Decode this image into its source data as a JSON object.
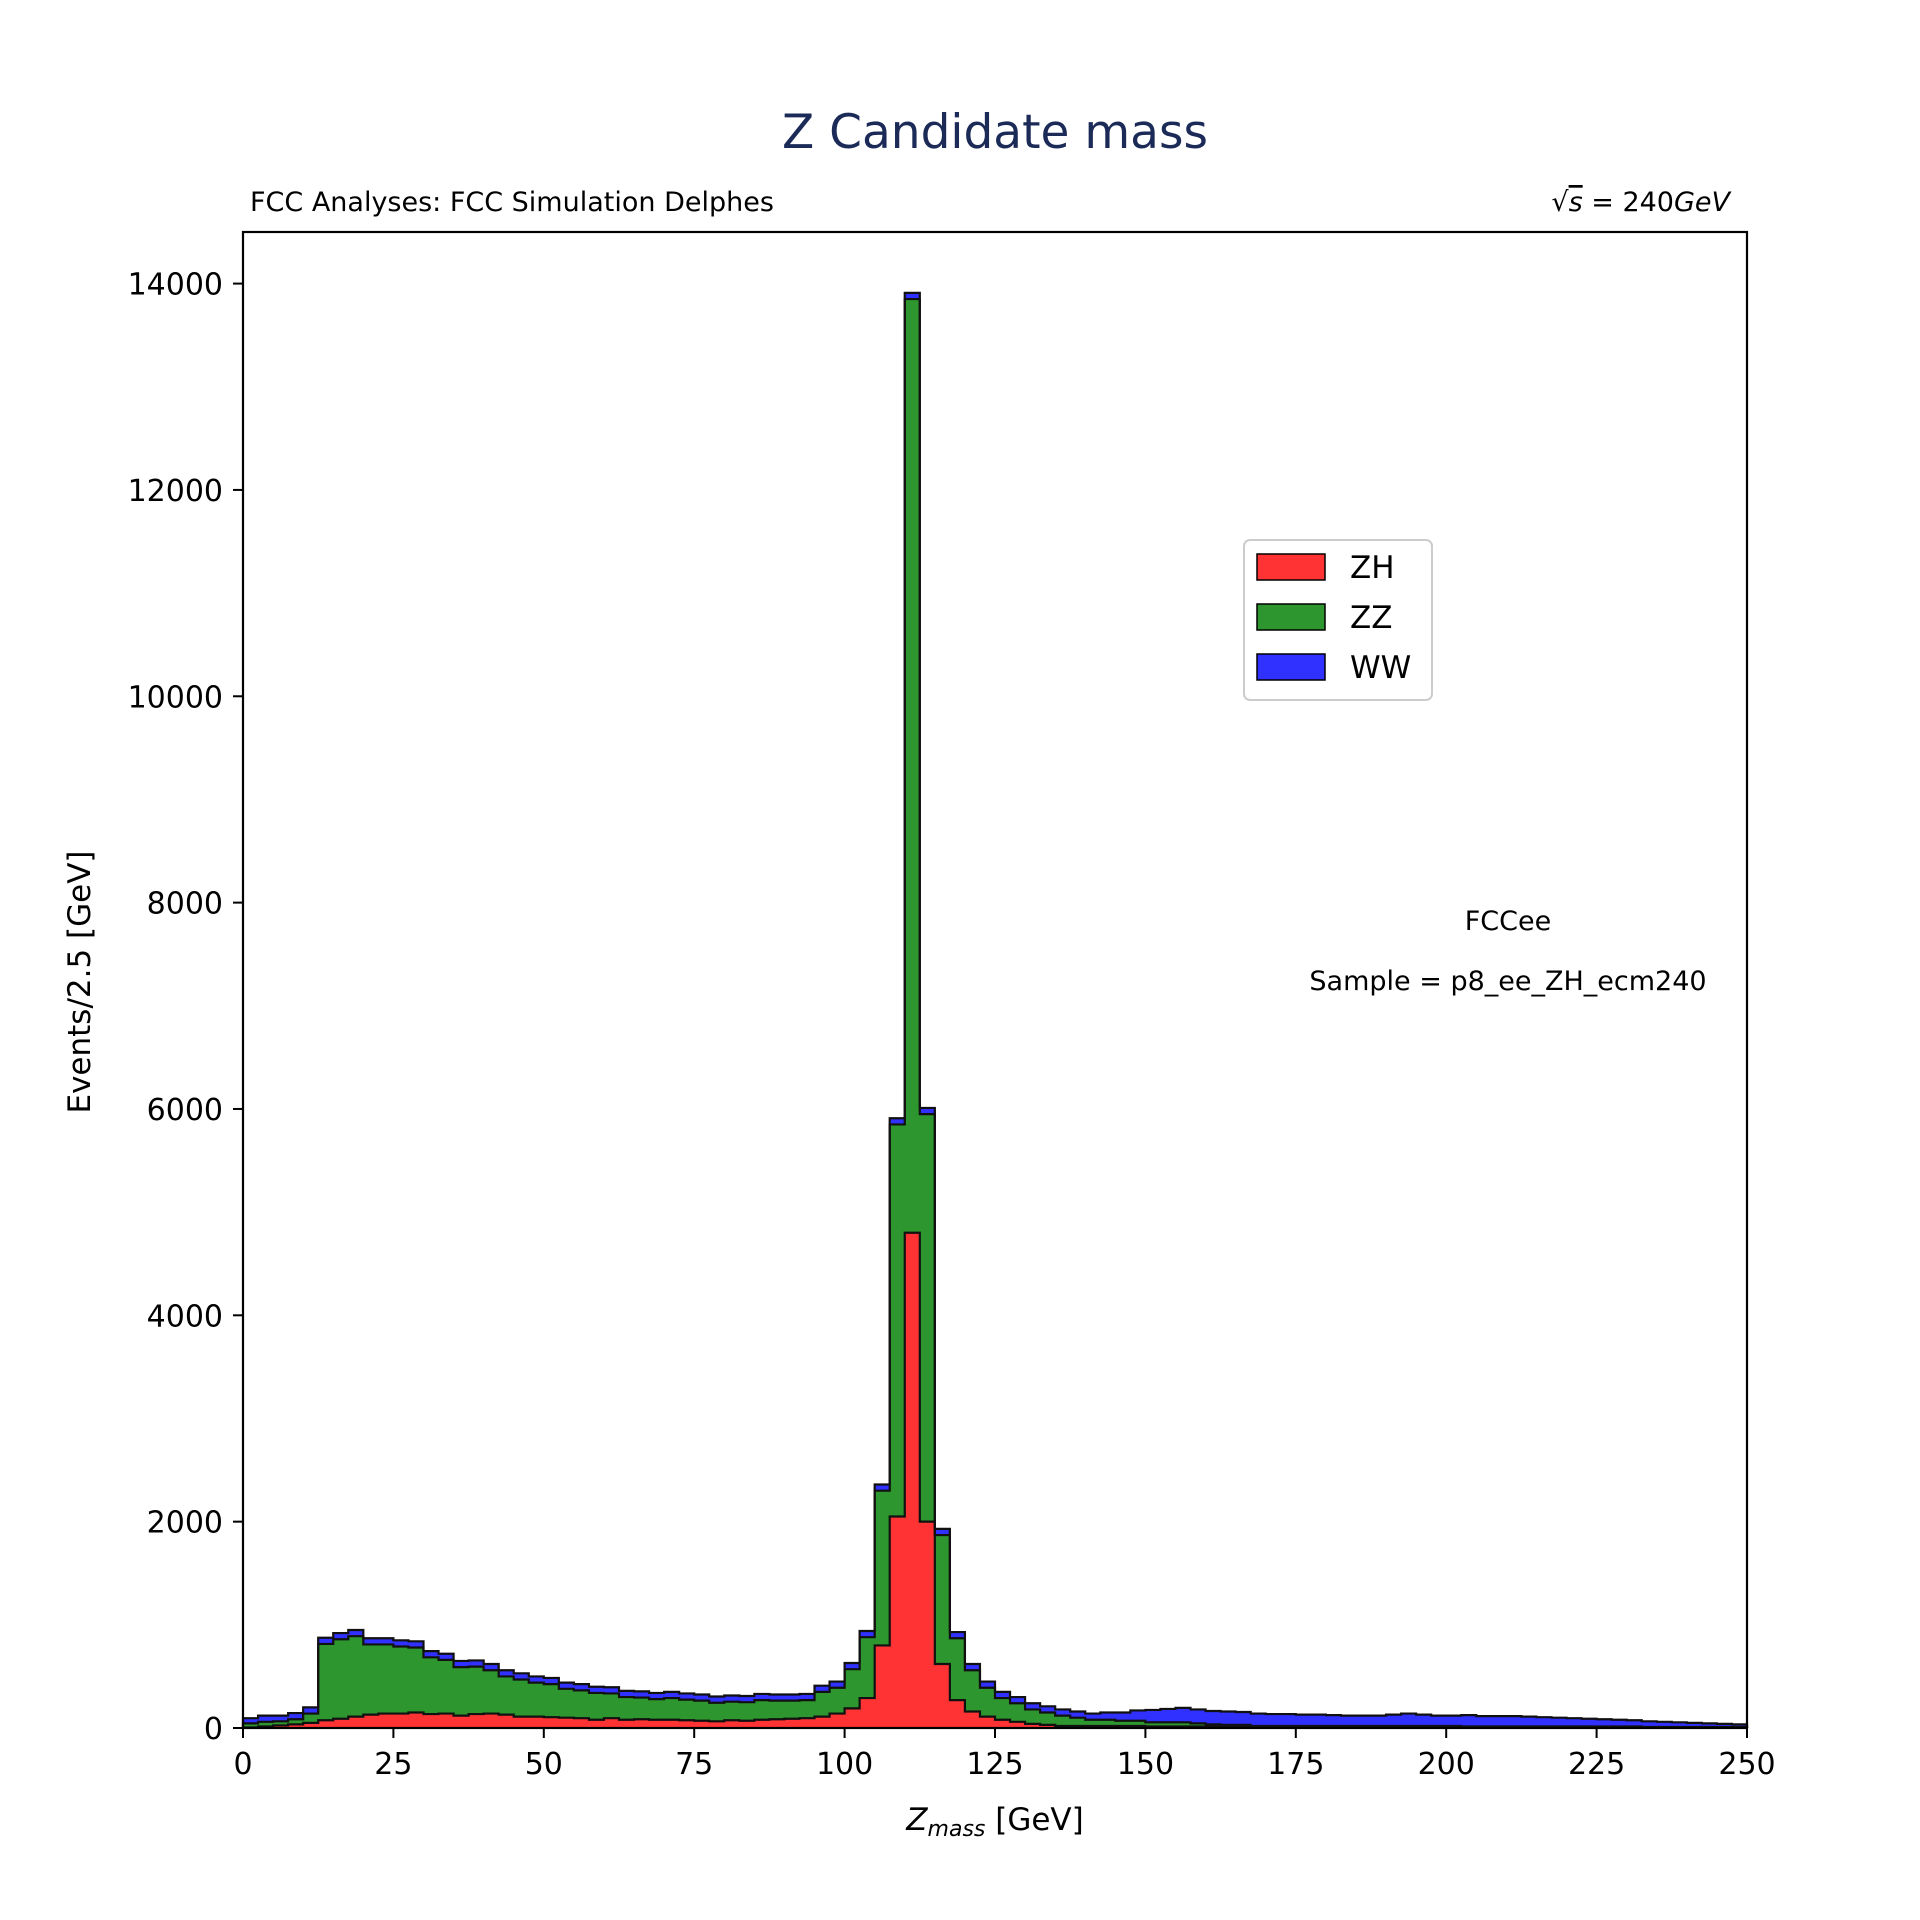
{
  "chart_data": {
    "type": "stacked-step-histogram",
    "title": "Z Candidate mass",
    "subtitle_left": "FCC Analyses: FCC Simulation Delphes",
    "subtitle_right_prefix": "√",
    "subtitle_right_sym": "s",
    "subtitle_right_eq": " = 240",
    "subtitle_right_unit": "GeV",
    "xlabel_sym": "Z",
    "xlabel_sub": "mass",
    "xlabel_unit": " [GeV]",
    "ylabel": "Events/2.5 [GeV]",
    "xlim": [
      0,
      250
    ],
    "ylim": [
      0,
      14500
    ],
    "xticks": [
      0,
      25,
      50,
      75,
      100,
      125,
      150,
      175,
      200,
      225,
      250
    ],
    "yticks": [
      0,
      2000,
      4000,
      6000,
      8000,
      10000,
      12000,
      14000
    ],
    "bin_width": 2.5,
    "bin_start": 0,
    "annotations": [
      "FCCee",
      "Sample = p8_ee_ZH_ecm240"
    ],
    "legend_position": "upper-right-center",
    "series": [
      {
        "name": "ZH",
        "color": "#ff3333",
        "values": [
          5,
          15,
          25,
          35,
          50,
          75,
          90,
          110,
          130,
          140,
          140,
          150,
          135,
          140,
          120,
          135,
          140,
          130,
          110,
          110,
          105,
          100,
          95,
          80,
          95,
          80,
          85,
          80,
          80,
          75,
          70,
          65,
          75,
          70,
          80,
          85,
          90,
          95,
          110,
          140,
          190,
          290,
          800,
          2050,
          4800,
          2000,
          620,
          270,
          160,
          110,
          80,
          60,
          40,
          30,
          20,
          20,
          20,
          20,
          20,
          20,
          15,
          15,
          15,
          15,
          15,
          15,
          15,
          10,
          10,
          10,
          10,
          10,
          10,
          10,
          10,
          10,
          10,
          10,
          10,
          10,
          10,
          5,
          5,
          5,
          5,
          5,
          5,
          5,
          5,
          5,
          5,
          5,
          5,
          5,
          5,
          5,
          5,
          5,
          5,
          5
        ]
      },
      {
        "name": "ZZ",
        "color": "#2e962e",
        "values": [
          40,
          45,
          40,
          50,
          90,
          740,
          770,
          780,
          680,
          670,
          650,
          630,
          550,
          520,
          470,
          460,
          420,
          370,
          360,
          330,
          320,
          280,
          270,
          260,
          240,
          220,
          210,
          200,
          210,
          200,
          195,
          180,
          180,
          180,
          190,
          180,
          175,
          175,
          240,
          250,
          380,
          590,
          1500,
          3800,
          9050,
          3950,
          1250,
          600,
          400,
          280,
          210,
          180,
          140,
          120,
          100,
          80,
          60,
          60,
          50,
          50,
          40,
          40,
          40,
          30,
          20,
          15,
          15,
          10,
          10,
          10,
          10,
          10,
          10,
          10,
          10,
          10,
          10,
          10,
          10,
          10,
          10,
          10,
          10,
          10,
          10,
          10,
          10,
          10,
          10,
          10,
          10,
          10,
          10,
          5,
          5,
          5,
          5,
          5,
          5,
          5
        ]
      },
      {
        "name": "WW",
        "color": "#3030ff",
        "values": [
          50,
          60,
          55,
          60,
          60,
          60,
          60,
          60,
          60,
          60,
          60,
          60,
          60,
          60,
          60,
          60,
          60,
          60,
          60,
          60,
          60,
          60,
          60,
          60,
          60,
          60,
          60,
          60,
          60,
          60,
          60,
          60,
          60,
          60,
          60,
          60,
          60,
          60,
          60,
          60,
          60,
          60,
          60,
          60,
          60,
          60,
          60,
          60,
          60,
          60,
          60,
          60,
          60,
          60,
          60,
          60,
          60,
          70,
          80,
          100,
          120,
          130,
          140,
          135,
          130,
          130,
          125,
          120,
          115,
          115,
          110,
          110,
          105,
          100,
          100,
          100,
          110,
          120,
          110,
          100,
          100,
          110,
          100,
          100,
          100,
          95,
          90,
          85,
          80,
          75,
          70,
          65,
          60,
          55,
          50,
          45,
          40,
          35,
          30,
          25
        ]
      }
    ],
    "tail_extra": {
      "WW": [
        40,
        30,
        25,
        20,
        15,
        12,
        10,
        8,
        7,
        6,
        5,
        5,
        4,
        4,
        3,
        3,
        3,
        2,
        2,
        2,
        2,
        2,
        1,
        1,
        1,
        1,
        1,
        1,
        1,
        1,
        1,
        1,
        1,
        1,
        1,
        1,
        1,
        1,
        1,
        1,
        1,
        1,
        1,
        1,
        1,
        1,
        1,
        1,
        1,
        1
      ],
      "ZZ": [
        5,
        5,
        4,
        4,
        3,
        3,
        3,
        2,
        2,
        2,
        2,
        2,
        2,
        2,
        2,
        2,
        2,
        2,
        2,
        2,
        2,
        2,
        1,
        1,
        1,
        1,
        1,
        1,
        1,
        1,
        1,
        1,
        1,
        1,
        1,
        1,
        1,
        1,
        1,
        1,
        1,
        1,
        1,
        1,
        1,
        1,
        1,
        1,
        1,
        1
      ],
      "ZH": [
        5,
        5,
        4,
        4,
        3,
        3,
        3,
        2,
        2,
        2,
        2,
        2,
        2,
        2,
        2,
        2,
        2,
        2,
        2,
        2,
        2,
        2,
        1,
        1,
        1,
        1,
        1,
        1,
        1,
        1,
        1,
        1,
        1,
        1,
        1,
        1,
        1,
        1,
        1,
        1,
        1,
        1,
        1,
        1,
        1,
        1,
        1,
        1,
        1,
        1
      ]
    }
  }
}
